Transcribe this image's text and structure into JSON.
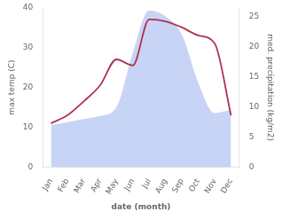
{
  "chart_data": {
    "type": "line",
    "categories": [
      "Jan",
      "Feb",
      "Mar",
      "Apr",
      "May",
      "Jun",
      "Jul",
      "Aug",
      "Sep",
      "Oct",
      "Nov",
      "Dec"
    ],
    "xlabel": "date (month)",
    "ylabel": "max temp (C)",
    "y2label": "med. precipitation (kg/m2)",
    "series": [
      {
        "type": "area",
        "axis": "y2",
        "color": "#c8d4f5",
        "values": [
          7.0,
          7.5,
          8.0,
          8.5,
          10.0,
          19.0,
          26.0,
          25.0,
          22.0,
          14.0,
          9.0,
          9.5
        ]
      },
      {
        "type": "line",
        "color": "#b03050",
        "values": [
          11.0,
          13.0,
          16.5,
          20.5,
          27.0,
          25.5,
          37.0,
          36.5,
          35.0,
          33.0,
          31.0,
          13.0
        ]
      }
    ],
    "ylim": [
      0,
      40
    ],
    "yticks": [
      0,
      10,
      20,
      30,
      40
    ],
    "y2lim": [
      0,
      26.5
    ],
    "y2ticks": [
      0,
      5,
      10,
      15,
      20,
      25
    ],
    "grid": false
  }
}
